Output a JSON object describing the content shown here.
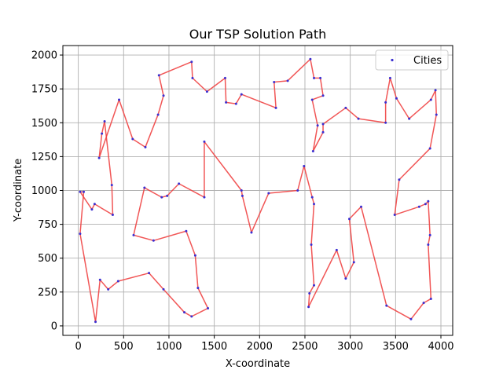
{
  "chart_data": {
    "type": "line",
    "title": "Our TSP Solution Path",
    "xlabel": "X-coordinate",
    "ylabel": "Y-coordinate",
    "xlim": [
      -170,
      4130
    ],
    "ylim": [
      -70,
      2070
    ],
    "xticks": [
      0,
      500,
      1000,
      1500,
      2000,
      2500,
      3000,
      3500,
      4000
    ],
    "yticks": [
      0,
      250,
      500,
      750,
      1000,
      1250,
      1500,
      1750,
      2000
    ],
    "grid": true,
    "legend": {
      "placement": "top-right",
      "entries": [
        "Cities"
      ]
    },
    "colors": {
      "path": "#ef4444",
      "cities": "#3b2fd0",
      "grid": "#b0b0b0"
    },
    "series": [
      {
        "name": "Cities",
        "x": [
          20,
          150,
          180,
          380,
          370,
          290,
          260,
          230,
          450,
          600,
          740,
          880,
          940,
          890,
          1250,
          1260,
          1420,
          1620,
          1630,
          1740,
          1800,
          2180,
          2160,
          2310,
          2560,
          2600,
          2670,
          2700,
          2580,
          2640,
          2590,
          2700,
          2700,
          2950,
          3090,
          3390,
          3390,
          3440,
          3510,
          3650,
          3890,
          3940,
          3950,
          3880,
          3540,
          3490,
          3760,
          3830,
          3860,
          3880,
          3860,
          3890,
          3810,
          3670,
          3400,
          3120,
          2990,
          3040,
          2950,
          2850,
          2540,
          2550,
          2600,
          2570,
          2600,
          2580,
          2490,
          2420,
          2100,
          1910,
          1810,
          1800,
          1390,
          1390,
          1110,
          980,
          920,
          730,
          610,
          830,
          1190,
          1290,
          1320,
          1430,
          1250,
          1170,
          940,
          780,
          440,
          330,
          240,
          190,
          20,
          60
        ],
        "y": [
          990,
          860,
          900,
          820,
          1040,
          1510,
          1420,
          1240,
          1670,
          1380,
          1320,
          1560,
          1700,
          1850,
          1950,
          1830,
          1730,
          1830,
          1650,
          1640,
          1710,
          1610,
          1800,
          1810,
          1970,
          1830,
          1830,
          1700,
          1670,
          1480,
          1290,
          1430,
          1490,
          1610,
          1530,
          1500,
          1650,
          1830,
          1680,
          1530,
          1670,
          1740,
          1560,
          1310,
          1080,
          820,
          880,
          900,
          920,
          670,
          600,
          200,
          170,
          50,
          150,
          880,
          790,
          470,
          350,
          560,
          140,
          240,
          300,
          600,
          900,
          950,
          1180,
          1000,
          980,
          690,
          960,
          1000,
          1360,
          950,
          1050,
          960,
          950,
          1020,
          670,
          630,
          700,
          520,
          280,
          130,
          70,
          100,
          270,
          390,
          330,
          270,
          340,
          30,
          680,
          990
        ]
      }
    ]
  }
}
